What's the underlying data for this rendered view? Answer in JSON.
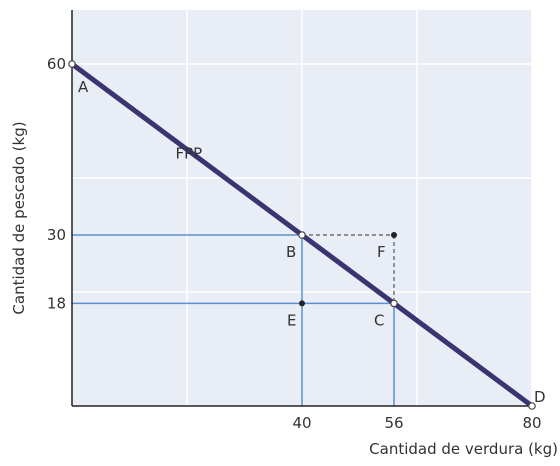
{
  "chart_data": {
    "type": "line",
    "title": "",
    "xlabel": "Cantidad de verdura (kg)",
    "ylabel": "Cantidad de pescado (kg)",
    "xlim": [
      0,
      80
    ],
    "ylim": [
      0,
      70
    ],
    "grid": true,
    "colors": {
      "background": "#e9eef6",
      "grid": "#ffffff",
      "axis": "#222222",
      "frontier": "#3a3570",
      "guide": "#5b8fd0",
      "dashed": "#555555",
      "point_fill": "#ffffff",
      "point_stroke": "#444444",
      "dot": "#222222"
    },
    "x_ticks": [
      {
        "value": 40,
        "label": "40"
      },
      {
        "value": 56,
        "label": "56"
      },
      {
        "value": 80,
        "label": "80"
      }
    ],
    "y_ticks": [
      {
        "value": 60,
        "label": "60"
      },
      {
        "value": 30,
        "label": "30"
      },
      {
        "value": 18,
        "label": "18"
      }
    ],
    "gridlines_x": [
      20,
      40,
      60,
      80
    ],
    "gridlines_y": [
      20,
      40,
      60
    ],
    "series": [
      {
        "name": "FPP",
        "x": [
          0,
          80
        ],
        "y": [
          60,
          0
        ]
      }
    ],
    "points": [
      {
        "label": "A",
        "x": 0,
        "y": 60,
        "style": "open"
      },
      {
        "label": "B",
        "x": 40,
        "y": 30,
        "style": "open"
      },
      {
        "label": "C",
        "x": 56,
        "y": 18,
        "style": "open"
      },
      {
        "label": "D",
        "x": 80,
        "y": 0,
        "style": "open"
      },
      {
        "label": "E",
        "x": 40,
        "y": 18,
        "style": "filled"
      },
      {
        "label": "F",
        "x": 56,
        "y": 30,
        "style": "filled"
      }
    ]
  }
}
